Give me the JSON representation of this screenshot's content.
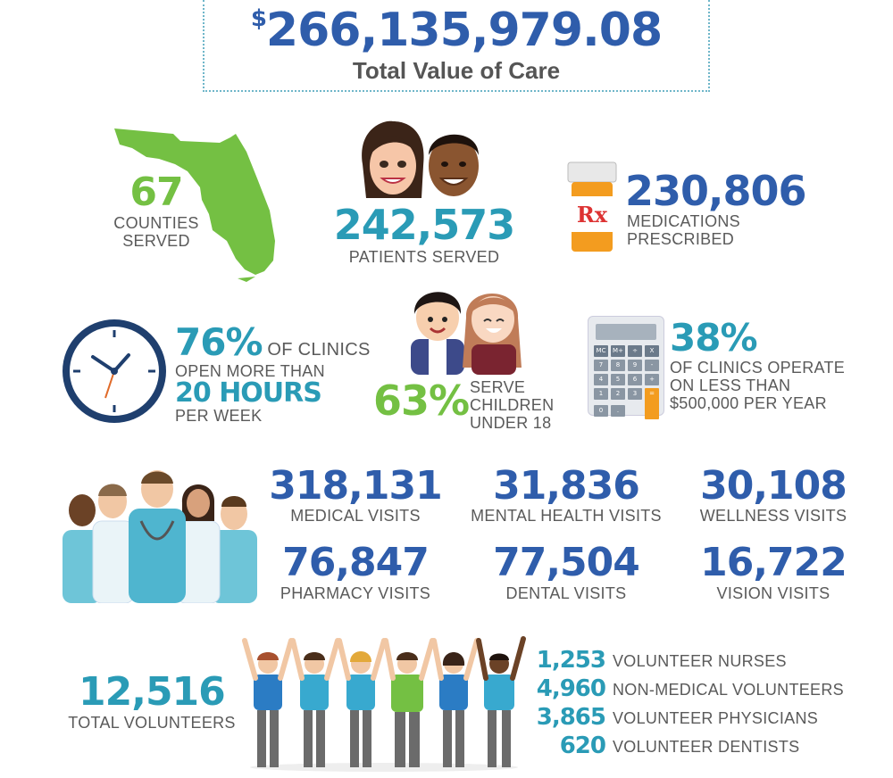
{
  "total": {
    "currency": "$",
    "value": "266,135,979.08",
    "label": "Total Value of Care"
  },
  "counties": {
    "value": "67",
    "label_1": "COUNTIES",
    "label_2": "SERVED"
  },
  "patients": {
    "value": "242,573",
    "label": "PATIENTS SERVED"
  },
  "medications": {
    "value": "230,806",
    "label_1": "MEDICATIONS",
    "label_2": "PRESCRIBED",
    "rx": "Rx"
  },
  "clinic_hours": {
    "pct": "76%",
    "text_1": " OF CLINICS",
    "text_2": "OPEN MORE THAN",
    "hours": "20 HOURS",
    "text_3": "PER WEEK"
  },
  "children": {
    "pct": "63%",
    "label_1": "SERVE",
    "label_2": "CHILDREN",
    "label_3": "UNDER 18"
  },
  "budget": {
    "pct": "38%",
    "label_1": "OF CLINICS OPERATE",
    "label_2": "ON LESS THAN",
    "label_3": "$500,000 PER YEAR"
  },
  "calculator": {
    "keys": [
      "MC",
      "M+",
      "÷",
      "X",
      "7",
      "8",
      "9",
      "-",
      "4",
      "5",
      "6",
      "+",
      "1",
      "2",
      "3",
      "=",
      "0",
      ".",
      "",
      ""
    ]
  },
  "visits": [
    {
      "value": "318,131",
      "label": "MEDICAL VISITS"
    },
    {
      "value": "31,836",
      "label": "MENTAL HEALTH VISITS"
    },
    {
      "value": "30,108",
      "label": "WELLNESS VISITS"
    },
    {
      "value": "76,847",
      "label": "PHARMACY VISITS"
    },
    {
      "value": "77,504",
      "label": "DENTAL VISITS"
    },
    {
      "value": "16,722",
      "label": "VISION VISITS"
    }
  ],
  "volunteers": {
    "total": "12,516",
    "total_label": "TOTAL VOLUNTEERS",
    "breakdown": [
      {
        "value": "1,253",
        "label": "VOLUNTEER NURSES"
      },
      {
        "value": "4,960",
        "label": "NON-MEDICAL VOLUNTEERS"
      },
      {
        "value": "3,865",
        "label": "VOLUNTEER PHYSICIANS"
      },
      {
        "value": "620",
        "label": "VOLUNTEER DENTISTS"
      }
    ]
  },
  "colors": {
    "blue": "#2f5dab",
    "teal": "#2a9bb6",
    "green": "#74c043",
    "orange": "#f39c1f"
  }
}
